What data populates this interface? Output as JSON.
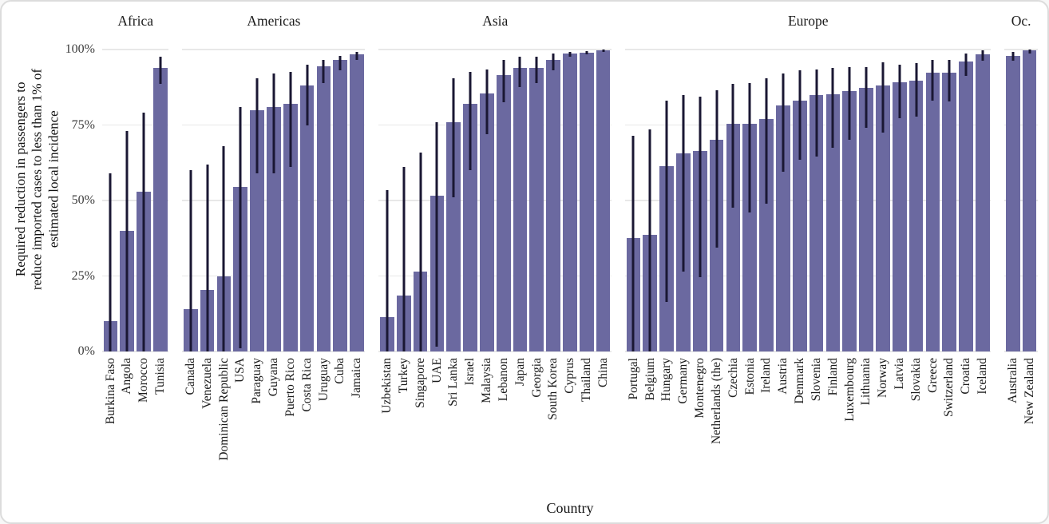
{
  "chart_data": {
    "type": "bar",
    "title": "",
    "xlabel": "Country",
    "ylabel": "Required reduction in passengers to\nreduce imported cases to less than 1% of\nestimated local incidence",
    "ylim": [
      0,
      100
    ],
    "grid": true,
    "error_bars": true,
    "legend": "none",
    "yticks": [
      {
        "value": 0,
        "label": "0%"
      },
      {
        "value": 25,
        "label": "25%"
      },
      {
        "value": 50,
        "label": "50%"
      },
      {
        "value": 75,
        "label": "75%"
      },
      {
        "value": 100,
        "label": "100%"
      }
    ],
    "colors": {
      "bar": "#6B69A0",
      "error_bar": "#1A1733",
      "gridline": "#E8E8E8",
      "text": "#1F1F1F",
      "card_border": "#DCDCDC"
    },
    "facets": [
      {
        "name": "Africa",
        "bars": [
          {
            "country": "Burkina Faso",
            "value": 10,
            "lo": 0,
            "hi": 59
          },
          {
            "country": "Angola",
            "value": 40,
            "lo": 0,
            "hi": 73
          },
          {
            "country": "Morocco",
            "value": 53,
            "lo": 0,
            "hi": 79
          },
          {
            "country": "Tunisia",
            "value": 94,
            "lo": 88.5,
            "hi": 97.5
          }
        ]
      },
      {
        "name": "Americas",
        "bars": [
          {
            "country": "Canada",
            "value": 14,
            "lo": 0,
            "hi": 60
          },
          {
            "country": "Venezuela",
            "value": 20.5,
            "lo": 0,
            "hi": 62
          },
          {
            "country": "Dominican Republic",
            "value": 25,
            "lo": 0,
            "hi": 68
          },
          {
            "country": "USA",
            "value": 54.5,
            "lo": 1,
            "hi": 81
          },
          {
            "country": "Paraguay",
            "value": 80,
            "lo": 59,
            "hi": 90.5
          },
          {
            "country": "Guyana",
            "value": 81,
            "lo": 59,
            "hi": 92
          },
          {
            "country": "Puerto Rico",
            "value": 82,
            "lo": 61,
            "hi": 92.5
          },
          {
            "country": "Costa Rica",
            "value": 88,
            "lo": 75,
            "hi": 95
          },
          {
            "country": "Uruguay",
            "value": 94.5,
            "lo": 89,
            "hi": 96.5
          },
          {
            "country": "Cuba",
            "value": 96.5,
            "lo": 93,
            "hi": 98
          },
          {
            "country": "Jamaica",
            "value": 98.3,
            "lo": 96.5,
            "hi": 99.3
          }
        ]
      },
      {
        "name": "Asia",
        "bars": [
          {
            "country": "Uzbekistan",
            "value": 11.5,
            "lo": 0,
            "hi": 53.5
          },
          {
            "country": "Turkey",
            "value": 18.5,
            "lo": 0,
            "hi": 61
          },
          {
            "country": "Singapore",
            "value": 26.5,
            "lo": 0,
            "hi": 66
          },
          {
            "country": "UAE",
            "value": 51.5,
            "lo": 1.5,
            "hi": 76
          },
          {
            "country": "Sri Lanka",
            "value": 76,
            "lo": 51,
            "hi": 90.5
          },
          {
            "country": "Israel",
            "value": 82,
            "lo": 60,
            "hi": 92.5
          },
          {
            "country": "Malaysia",
            "value": 85.5,
            "lo": 72,
            "hi": 93.5
          },
          {
            "country": "Lebanon",
            "value": 91.5,
            "lo": 82.5,
            "hi": 96.5
          },
          {
            "country": "Japan",
            "value": 94,
            "lo": 87.5,
            "hi": 97.5
          },
          {
            "country": "Georgia",
            "value": 94,
            "lo": 89,
            "hi": 97.5
          },
          {
            "country": "South Korea",
            "value": 96.5,
            "lo": 93,
            "hi": 98.8
          },
          {
            "country": "Cyprus",
            "value": 98.7,
            "lo": 97.5,
            "hi": 99.3
          },
          {
            "country": "Thailand",
            "value": 99,
            "lo": 98.3,
            "hi": 99.5
          },
          {
            "country": "China",
            "value": 99.7,
            "lo": 99.3,
            "hi": 100
          }
        ]
      },
      {
        "name": "Europe",
        "bars": [
          {
            "country": "Portugal",
            "value": 37.5,
            "lo": 0,
            "hi": 71.5
          },
          {
            "country": "Belgium",
            "value": 38.5,
            "lo": 0,
            "hi": 73.5
          },
          {
            "country": "Hungary",
            "value": 61.5,
            "lo": 16.5,
            "hi": 83
          },
          {
            "country": "Germany",
            "value": 65.5,
            "lo": 26.5,
            "hi": 85
          },
          {
            "country": "Montenegro",
            "value": 66.5,
            "lo": 24.5,
            "hi": 84.5
          },
          {
            "country": "Netherlands (the)",
            "value": 70,
            "lo": 34.5,
            "hi": 86.5
          },
          {
            "country": "Czechia",
            "value": 75.5,
            "lo": 47.5,
            "hi": 88.5
          },
          {
            "country": "Estonia",
            "value": 75.5,
            "lo": 46,
            "hi": 89
          },
          {
            "country": "Ireland",
            "value": 77,
            "lo": 49,
            "hi": 90.5
          },
          {
            "country": "Austria",
            "value": 81.5,
            "lo": 59.5,
            "hi": 92
          },
          {
            "country": "Denmark",
            "value": 83,
            "lo": 63.5,
            "hi": 93
          },
          {
            "country": "Slovenia",
            "value": 85,
            "lo": 64.5,
            "hi": 93.5
          },
          {
            "country": "Finland",
            "value": 85.3,
            "lo": 67.5,
            "hi": 94
          },
          {
            "country": "Luxembourg",
            "value": 86.3,
            "lo": 70,
            "hi": 94.2
          },
          {
            "country": "Lithuania",
            "value": 87.4,
            "lo": 74,
            "hi": 94.2
          },
          {
            "country": "Norway",
            "value": 88,
            "lo": 72.5,
            "hi": 95.8
          },
          {
            "country": "Latvia",
            "value": 89.2,
            "lo": 77.3,
            "hi": 95.1
          },
          {
            "country": "Slovakia",
            "value": 89.7,
            "lo": 77.7,
            "hi": 95.4
          },
          {
            "country": "Greece",
            "value": 92.3,
            "lo": 83.2,
            "hi": 96.6
          },
          {
            "country": "Switzerland",
            "value": 92.3,
            "lo": 82.8,
            "hi": 96.5
          },
          {
            "country": "Croatia",
            "value": 96,
            "lo": 91.2,
            "hi": 98.7
          },
          {
            "country": "Iceland",
            "value": 98.5,
            "lo": 96.4,
            "hi": 99.7
          }
        ]
      },
      {
        "name": "Oc.",
        "bars": [
          {
            "country": "Australia",
            "value": 98,
            "lo": 96.2,
            "hi": 99.3
          },
          {
            "country": "New Zealand",
            "value": 99.7,
            "lo": 98.8,
            "hi": 100
          }
        ]
      }
    ]
  }
}
